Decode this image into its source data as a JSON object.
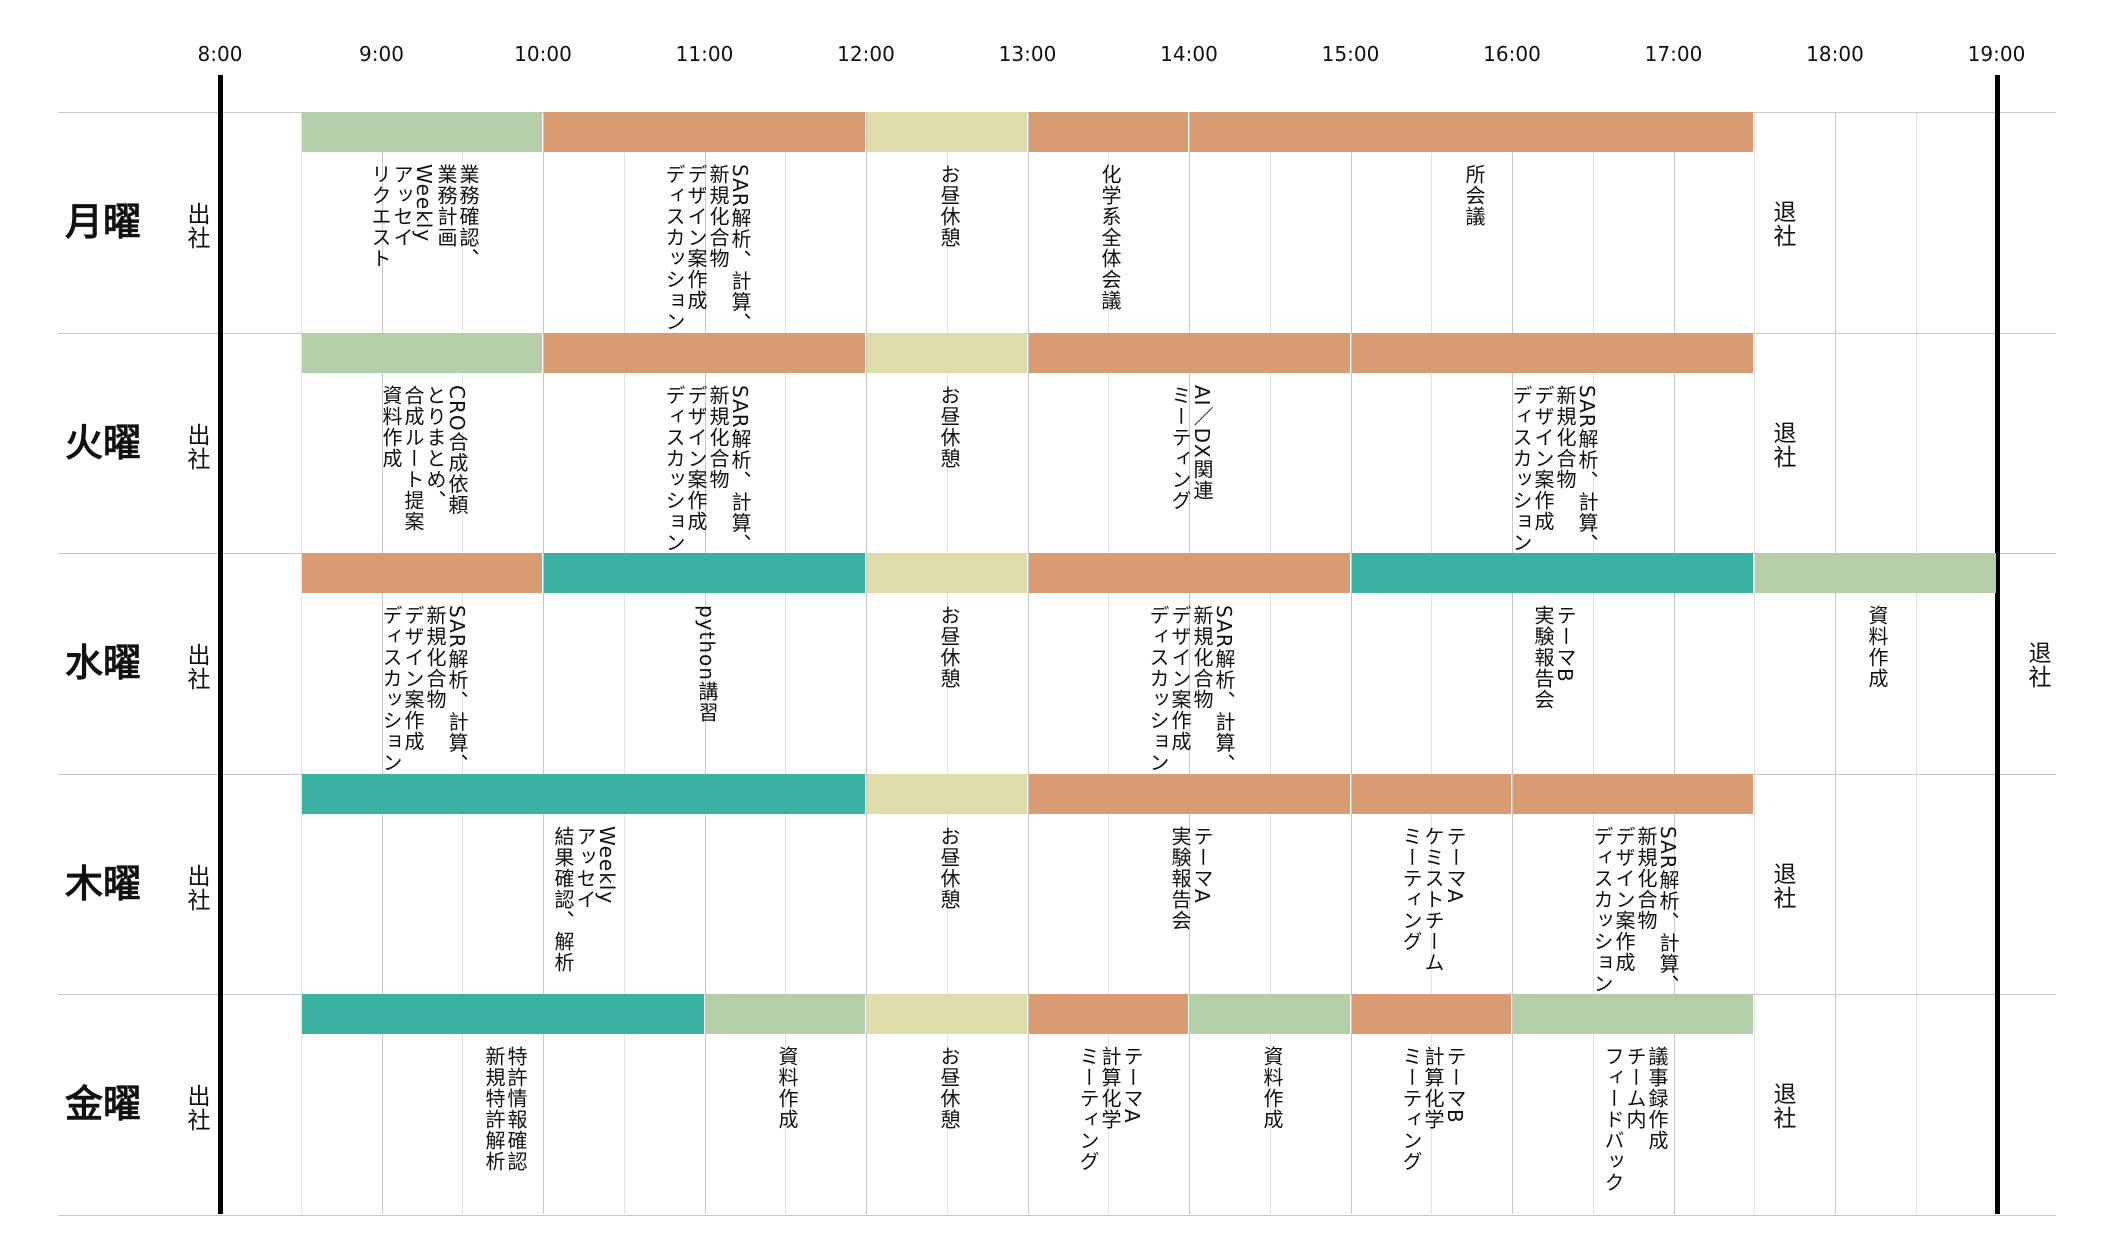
{
  "colors": {
    "meeting": "#d99b72",
    "desk": "#b5ceaa",
    "lunch": "#dedcaa",
    "training": "#3bb1a4"
  },
  "hours": [
    "8:00",
    "9:00",
    "10:00",
    "11:00",
    "12:00",
    "13:00",
    "14:00",
    "15:00",
    "16:00",
    "17:00",
    "18:00",
    "19:00"
  ],
  "days": [
    {
      "id": "mon",
      "label": "月曜",
      "start_label": "出社",
      "end": {
        "label": "退社",
        "time": 17.5
      },
      "blocks": [
        {
          "start": 8.5,
          "end": 10,
          "type": "desk",
          "text": "業務確認、\n業務計画\nWeekly\nアッセイ\nリクエスト"
        },
        {
          "start": 10,
          "end": 12,
          "type": "meeting",
          "text": "SAR解析、計算、\n新規化合物\nデザイン案作成\nディスカッション"
        },
        {
          "start": 12,
          "end": 13,
          "type": "lunch",
          "text": "お昼休憩"
        },
        {
          "start": 13,
          "end": 14,
          "type": "meeting",
          "text": "化学系全体会議"
        },
        {
          "start": 14,
          "end": 17.5,
          "type": "meeting",
          "text": "所会議"
        }
      ]
    },
    {
      "id": "tue",
      "label": "火曜",
      "start_label": "出社",
      "end": {
        "label": "退社",
        "time": 17.5
      },
      "blocks": [
        {
          "start": 8.5,
          "end": 10,
          "type": "desk",
          "text": "CRO合成依頼\nとりまとめ、\n合成ルート提案\n資料作成"
        },
        {
          "start": 10,
          "end": 12,
          "type": "meeting",
          "text": "SAR解析、計算、\n新規化合物\nデザイン案作成\nディスカッション"
        },
        {
          "start": 12,
          "end": 13,
          "type": "lunch",
          "text": "お昼休憩"
        },
        {
          "start": 13,
          "end": 15,
          "type": "meeting",
          "text": "AI／DX関連\nミーティング"
        },
        {
          "start": 15,
          "end": 17.5,
          "type": "meeting",
          "text": "SAR解析、計算、\n新規化合物\nデザイン案作成\nディスカッション"
        }
      ]
    },
    {
      "id": "wed",
      "label": "水曜",
      "start_label": "出社",
      "end": {
        "label": "退社",
        "time": 19
      },
      "blocks": [
        {
          "start": 8.5,
          "end": 10,
          "type": "meeting",
          "text": "SAR解析、計算、\n新規化合物\nデザイン案作成\nディスカッション"
        },
        {
          "start": 10,
          "end": 12,
          "type": "training",
          "text": "python講習"
        },
        {
          "start": 12,
          "end": 13,
          "type": "lunch",
          "text": "お昼休憩"
        },
        {
          "start": 13,
          "end": 15,
          "type": "meeting",
          "text": "SAR解析、計算、\n新規化合物\nデザイン案作成\nディスカッション"
        },
        {
          "start": 15,
          "end": 17.5,
          "type": "training",
          "text": "テーマB\n実験報告会"
        },
        {
          "start": 17.5,
          "end": 19,
          "type": "desk",
          "text": "資料作成"
        }
      ]
    },
    {
      "id": "thu",
      "label": "木曜",
      "start_label": "出社",
      "end": {
        "label": "退社",
        "time": 17.5
      },
      "blocks": [
        {
          "start": 8.5,
          "end": 12,
          "type": "training",
          "text": "Weekly\nアッセイ\n結果確認、解析"
        },
        {
          "start": 12,
          "end": 13,
          "type": "lunch",
          "text": "お昼休憩"
        },
        {
          "start": 13,
          "end": 15,
          "type": "meeting",
          "text": "テーマA\n実験報告会"
        },
        {
          "start": 15,
          "end": 16,
          "type": "meeting",
          "text": "テーマA\nケミストチーム\nミーティング"
        },
        {
          "start": 16,
          "end": 17.5,
          "type": "meeting",
          "text": "SAR解析、計算、\n新規化合物\nデザイン案作成\nディスカッション"
        }
      ]
    },
    {
      "id": "fri",
      "label": "金曜",
      "start_label": "出社",
      "end": {
        "label": "退社",
        "time": 17.5
      },
      "blocks": [
        {
          "start": 8.5,
          "end": 11,
          "type": "training",
          "text": "特許情報確認\n新規特許解析"
        },
        {
          "start": 11,
          "end": 12,
          "type": "desk",
          "text": "資料作成"
        },
        {
          "start": 12,
          "end": 13,
          "type": "lunch",
          "text": "お昼休憩"
        },
        {
          "start": 13,
          "end": 14,
          "type": "meeting",
          "text": "テーマA\n計算化学\nミーティング"
        },
        {
          "start": 14,
          "end": 15,
          "type": "desk",
          "text": "資料作成"
        },
        {
          "start": 15,
          "end": 16,
          "type": "meeting",
          "text": "テーマB\n計算化学\nミーティング"
        },
        {
          "start": 16,
          "end": 17.5,
          "type": "desk",
          "text": "議事録作成\nチーム内\nフィードバック"
        }
      ]
    }
  ]
}
